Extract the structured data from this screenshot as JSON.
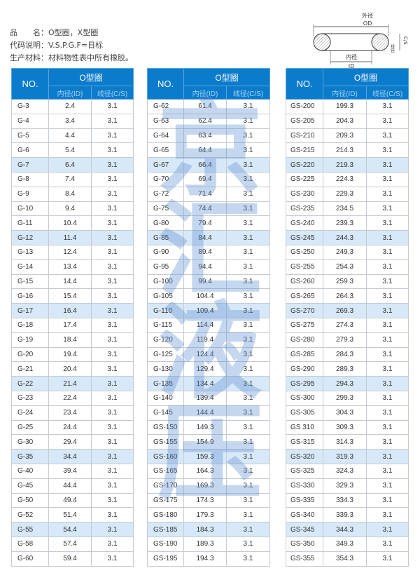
{
  "info": {
    "product_label": "品　　名：",
    "product_value": "O型圈，X型圈",
    "code_label": "代码说明：",
    "code_value": "V.S.P.G.F=日标",
    "material_label": "生产材料：",
    "material_value": "材料物性表中所有橡胶。"
  },
  "diagram": {
    "od_cn": "外径",
    "od": "OD",
    "id_cn": "内径",
    "id": "ID",
    "cs_cn": "线径",
    "cs": "C/S"
  },
  "header": {
    "no": "NO.",
    "group": "O型圈",
    "id_col": "内径(ID)",
    "cs_col": "线径(C/S)"
  },
  "watermark": "京汇液压",
  "colors": {
    "header_bg": "#0b7bcc",
    "highlight_row": "#d7e9f8"
  },
  "tables": [
    [
      [
        "G-3",
        "2.4",
        "3.1"
      ],
      [
        "G-4",
        "3.4",
        "3.1"
      ],
      [
        "G-5",
        "4.4",
        "3.1"
      ],
      [
        "G-6",
        "5.4",
        "3.1"
      ],
      [
        "G-7",
        "6.4",
        "3.1"
      ],
      [
        "G-8",
        "7.4",
        "3.1"
      ],
      [
        "G-9",
        "8.4",
        "3.1"
      ],
      [
        "G-10",
        "9.4",
        "3.1"
      ],
      [
        "G-11",
        "10.4",
        "3.1"
      ],
      [
        "G-12",
        "11.4",
        "3.1"
      ],
      [
        "G-13",
        "12.4",
        "3.1"
      ],
      [
        "G-14",
        "13.4",
        "3.1"
      ],
      [
        "G-15",
        "14.4",
        "3.1"
      ],
      [
        "G-16",
        "15.4",
        "3.1"
      ],
      [
        "G-17",
        "16.4",
        "3.1"
      ],
      [
        "G-18",
        "17.4",
        "3.1"
      ],
      [
        "G-19",
        "18.4",
        "3.1"
      ],
      [
        "G-20",
        "19.4",
        "3.1"
      ],
      [
        "G-21",
        "20.4",
        "3.1"
      ],
      [
        "G-22",
        "21.4",
        "3.1"
      ],
      [
        "G-23",
        "22.4",
        "3.1"
      ],
      [
        "G-24",
        "23.4",
        "3.1"
      ],
      [
        "G-25",
        "24.4",
        "3.1"
      ],
      [
        "G-30",
        "29.4",
        "3.1"
      ],
      [
        "G-35",
        "34.4",
        "3.1"
      ],
      [
        "G-40",
        "39.4",
        "3.1"
      ],
      [
        "G-45",
        "44.4",
        "3.1"
      ],
      [
        "G-50",
        "49.4",
        "3.1"
      ],
      [
        "G-52",
        "51.4",
        "3.1"
      ],
      [
        "G-55",
        "54.4",
        "3.1"
      ],
      [
        "G-58",
        "57.4",
        "3.1"
      ],
      [
        "G-60",
        "59.4",
        "3.1"
      ]
    ],
    [
      [
        "G-62",
        "61.4",
        "3.1"
      ],
      [
        "G-63",
        "62.4",
        "3.1"
      ],
      [
        "G-64",
        "63.4",
        "3.1"
      ],
      [
        "G-65",
        "64.4",
        "3.1"
      ],
      [
        "G-67",
        "66.4",
        "3.1"
      ],
      [
        "G-70",
        "69.4",
        "3.1"
      ],
      [
        "G-72",
        "71.4",
        "3.1"
      ],
      [
        "G-75",
        "74.4",
        "3.1"
      ],
      [
        "G-80",
        "79.4",
        "3.1"
      ],
      [
        "G-85",
        "84.4",
        "3.1"
      ],
      [
        "G-90",
        "89.4",
        "3.1"
      ],
      [
        "G-95",
        "94.4",
        "3.1"
      ],
      [
        "G-100",
        "99.4",
        "3.1"
      ],
      [
        "G-105",
        "104.4",
        "3.1"
      ],
      [
        "G-110",
        "109.4",
        "3.1"
      ],
      [
        "G-115",
        "114.4",
        "3.1"
      ],
      [
        "G-120",
        "119.4",
        "3.1"
      ],
      [
        "G-125",
        "124.4",
        "3.1"
      ],
      [
        "G-130",
        "129.4",
        "3.1"
      ],
      [
        "G-135",
        "134.4",
        "3.1"
      ],
      [
        "G-140",
        "139.4",
        "3.1"
      ],
      [
        "G-145",
        "144.4",
        "3.1"
      ],
      [
        "GS-150",
        "149.3",
        "3.1"
      ],
      [
        "GS-155",
        "154.9",
        "3.1"
      ],
      [
        "GS-160",
        "159.3",
        "3.1"
      ],
      [
        "GS-165",
        "164.3",
        "3.1"
      ],
      [
        "GS-170",
        "169.3",
        "3.1"
      ],
      [
        "GS-175",
        "174.3",
        "3.1"
      ],
      [
        "GS-180",
        "179.3",
        "3.1"
      ],
      [
        "GS-185",
        "184.3",
        "3.1"
      ],
      [
        "GS-190",
        "189.3",
        "3.1"
      ],
      [
        "GS-195",
        "194.3",
        "3.1"
      ]
    ],
    [
      [
        "GS-200",
        "199.3",
        "3.1"
      ],
      [
        "GS-205",
        "204.3",
        "3.1"
      ],
      [
        "GS-210",
        "209.3",
        "3.1"
      ],
      [
        "GS-215",
        "214.3",
        "3.1"
      ],
      [
        "GS-220",
        "219.3",
        "3.1"
      ],
      [
        "GS-225",
        "224.3",
        "3.1"
      ],
      [
        "GS-230",
        "229.3",
        "3.1"
      ],
      [
        "GS-235",
        "234.5",
        "3.1"
      ],
      [
        "GS-240",
        "239.3",
        "3.1"
      ],
      [
        "GS-245",
        "244.3",
        "3.1"
      ],
      [
        "GS-250",
        "249.3",
        "3.1"
      ],
      [
        "GS-255",
        "254.3",
        "3.1"
      ],
      [
        "GS-260",
        "259.3",
        "3.1"
      ],
      [
        "GS-265",
        "264.3",
        "3.1"
      ],
      [
        "GS-270",
        "269.3",
        "3.1"
      ],
      [
        "GS-275",
        "274.3",
        "3.1"
      ],
      [
        "GS-280",
        "279.3",
        "3.1"
      ],
      [
        "GS-285",
        "284.3",
        "3.1"
      ],
      [
        "GS-290",
        "289.3",
        "3.1"
      ],
      [
        "GS-295",
        "294.3",
        "3.1"
      ],
      [
        "GS-300",
        "299.3",
        "3.1"
      ],
      [
        "GS-305",
        "304.3",
        "3.1"
      ],
      [
        "GS 310",
        "309.3",
        "3.1"
      ],
      [
        "GS-315",
        "314.3",
        "3.1"
      ],
      [
        "GS-320",
        "319.3",
        "3.1"
      ],
      [
        "GS-325",
        "324.3",
        "3.1"
      ],
      [
        "GS-330",
        "329.3",
        "3.1"
      ],
      [
        "GS-335",
        "334.3",
        "3.1"
      ],
      [
        "GS-340",
        "339.3",
        "3.1"
      ],
      [
        "GS-345",
        "344.3",
        "3.1"
      ],
      [
        "GS-350",
        "349.3",
        "3.1"
      ],
      [
        "GS-355",
        "354.3",
        "3.1"
      ]
    ]
  ]
}
